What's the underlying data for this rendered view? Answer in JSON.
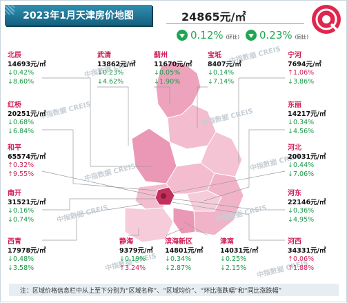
{
  "title": "2023年1月天津房价地图",
  "average_price": "24865元/㎡",
  "mom": {
    "value": "0.12%",
    "tag": "(环比)"
  },
  "yoy": {
    "value": "0.23%",
    "tag": "(同比)"
  },
  "note": "注：区域价格信息栏中从上至下分别为“区域名称”、“区域均价”、“环比涨跌幅”和“同比涨跌幅”",
  "watermarks": [
    "中指数据 CREIS",
    "中指数据 CREIS",
    "中指数据 CREIS",
    "中指数据 CREIS",
    "中指数据 CREIS",
    "中指数据 CREIS",
    "中指数据 CREIS",
    "中指数据 CREIS",
    "中指数据 CREIS",
    "中指数据 CREIS"
  ],
  "colors": {
    "title_bg": "#14607f",
    "up": "#d11f55",
    "down": "#1b9a48",
    "map_light": "#f6c9d8",
    "map_mid": "#e98fae",
    "map_dark": "#c2315d"
  },
  "districts": [
    {
      "name": "北辰",
      "price": "14693元/㎡",
      "mom": "↓0.42%",
      "mom_dir": "down",
      "yoy": "↓8.60%",
      "yoy_dir": "down"
    },
    {
      "name": "红桥",
      "price": "20251元/㎡",
      "mom": "↓0.68%",
      "mom_dir": "down",
      "yoy": "↓6.84%",
      "yoy_dir": "down"
    },
    {
      "name": "和平",
      "price": "65574元/㎡",
      "mom": "↑0.32%",
      "mom_dir": "up",
      "yoy": "↑9.55%",
      "yoy_dir": "up"
    },
    {
      "name": "南开",
      "price": "31521元/㎡",
      "mom": "↓0.16%",
      "mom_dir": "down",
      "yoy": "↓0.74%",
      "yoy_dir": "down"
    },
    {
      "name": "西青",
      "price": "17978元/㎡",
      "mom": "↓0.48%",
      "mom_dir": "down",
      "yoy": "↓3.58%",
      "yoy_dir": "down"
    },
    {
      "name": "武清",
      "price": "13862元/㎡",
      "mom": "↓0.23%",
      "mom_dir": "down",
      "yoy": "↓4.62%",
      "yoy_dir": "down"
    },
    {
      "name": "蓟州",
      "price": "11670元/㎡",
      "mom": "↓0.05%",
      "mom_dir": "down",
      "yoy": "↓1.90%",
      "yoy_dir": "down"
    },
    {
      "name": "宝坻",
      "price": "8407元/㎡",
      "mom": "↓0.14%",
      "mom_dir": "down",
      "yoy": "↓7.14%",
      "yoy_dir": "down"
    },
    {
      "name": "宁河",
      "price": "7694元/㎡",
      "mom": "↑1.06%",
      "mom_dir": "up",
      "yoy": "↓3.86%",
      "yoy_dir": "down"
    },
    {
      "name": "东丽",
      "price": "14217元/㎡",
      "mom": "↓0.34%",
      "mom_dir": "down",
      "yoy": "↓4.56%",
      "yoy_dir": "down"
    },
    {
      "name": "河北",
      "price": "20031元/㎡",
      "mom": "↓0.44%",
      "mom_dir": "down",
      "yoy": "↓7.06%",
      "yoy_dir": "down"
    },
    {
      "name": "河东",
      "price": "22146元/㎡",
      "mom": "↓0.36%",
      "mom_dir": "down",
      "yoy": "↓4.95%",
      "yoy_dir": "down"
    },
    {
      "name": "河西",
      "price": "34331元/㎡",
      "mom": "↑0.06%",
      "mom_dir": "up",
      "yoy": "↑1.88%",
      "yoy_dir": "up"
    },
    {
      "name": "静海",
      "price": "9379元/㎡",
      "mom": "↓0.19%",
      "mom_dir": "down",
      "yoy": "↑3.24%",
      "yoy_dir": "up"
    },
    {
      "name": "滨海新区",
      "price": "14801元/㎡",
      "mom": "↓0.34%",
      "mom_dir": "down",
      "yoy": "↓2.87%",
      "yoy_dir": "down"
    },
    {
      "name": "津南",
      "price": "14031元/㎡",
      "mom": "↓0.25%",
      "mom_dir": "down",
      "yoy": "↓2.15%",
      "yoy_dir": "down"
    }
  ]
}
